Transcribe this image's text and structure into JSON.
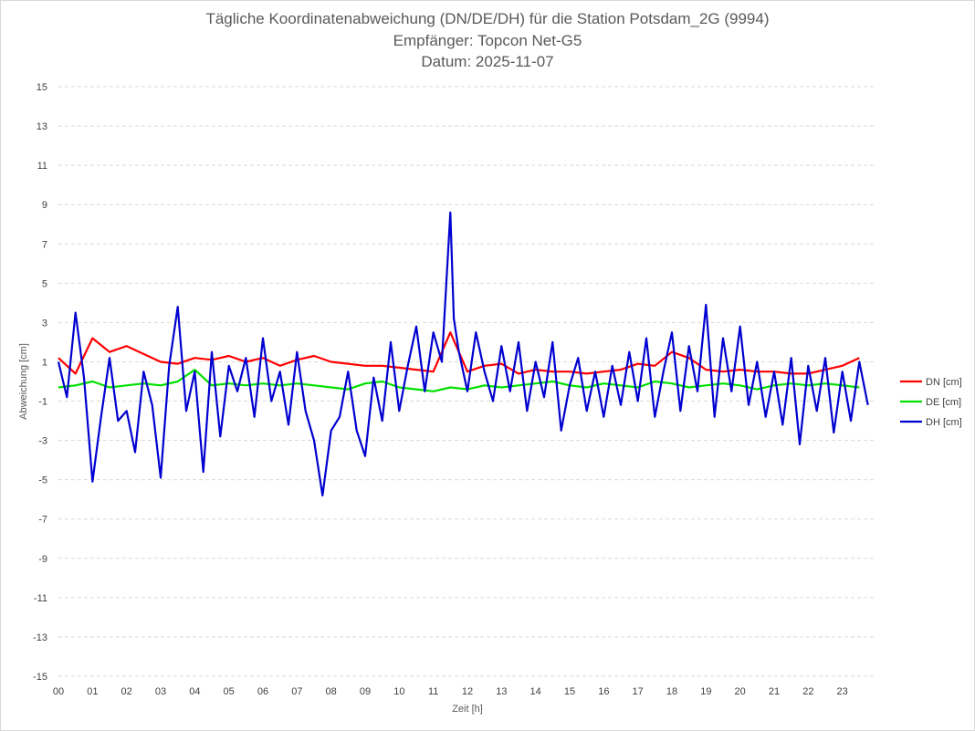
{
  "chart_data": {
    "type": "line",
    "title": "Tägliche Koordinatenabweichung (DN/DE/DH) für die Station Potsdam_2G (9994)",
    "subtitle_receiver": "Empfänger: Topcon Net-G5",
    "subtitle_date": "Datum: 2025-11-07",
    "xlabel": "Zeit [h]",
    "ylabel": "Abweichung [cm]",
    "xlim": [
      0,
      24
    ],
    "ylim": [
      -15,
      15
    ],
    "yticks": [
      "15",
      "13",
      "11",
      "9",
      "7",
      "5",
      "3",
      "1",
      "-1",
      "-3",
      "-5",
      "-7",
      "-9",
      "-11",
      "-13",
      "-15"
    ],
    "xticks": [
      "00",
      "01",
      "02",
      "03",
      "04",
      "05",
      "06",
      "07",
      "08",
      "09",
      "10",
      "11",
      "12",
      "13",
      "14",
      "15",
      "16",
      "17",
      "18",
      "19",
      "20",
      "21",
      "22",
      "23"
    ],
    "grid": "horizontal dashed",
    "legend_position": "right",
    "series": [
      {
        "name": "DN [cm]",
        "color": "#ff0000",
        "x": [
          0,
          0.5,
          1,
          1.5,
          2,
          2.5,
          3,
          3.5,
          4,
          4.5,
          5,
          5.5,
          6,
          6.5,
          7,
          7.5,
          8,
          8.5,
          9,
          9.5,
          10,
          10.5,
          11,
          11.5,
          12,
          12.5,
          13,
          13.5,
          14,
          14.5,
          15,
          15.5,
          16,
          16.5,
          17,
          17.5,
          18,
          18.5,
          19,
          19.5,
          20,
          20.5,
          21,
          21.5,
          22,
          22.5,
          23,
          23.5
        ],
        "values": [
          1.2,
          0.4,
          2.2,
          1.5,
          1.8,
          1.4,
          1.0,
          0.9,
          1.2,
          1.1,
          1.3,
          1.0,
          1.2,
          0.8,
          1.1,
          1.3,
          1.0,
          0.9,
          0.8,
          0.8,
          0.7,
          0.6,
          0.5,
          2.5,
          0.5,
          0.8,
          0.9,
          0.4,
          0.6,
          0.5,
          0.5,
          0.4,
          0.5,
          0.6,
          0.9,
          0.8,
          1.5,
          1.2,
          0.6,
          0.5,
          0.6,
          0.5,
          0.5,
          0.4,
          0.4,
          0.6,
          0.8,
          1.2
        ]
      },
      {
        "name": "DE [cm]",
        "color": "#00e000",
        "x": [
          0,
          0.5,
          1,
          1.5,
          2,
          2.5,
          3,
          3.5,
          4,
          4.5,
          5,
          5.5,
          6,
          6.5,
          7,
          7.5,
          8,
          8.5,
          9,
          9.5,
          10,
          10.5,
          11,
          11.5,
          12,
          12.5,
          13,
          13.5,
          14,
          14.5,
          15,
          15.5,
          16,
          16.5,
          17,
          17.5,
          18,
          18.5,
          19,
          19.5,
          20,
          20.5,
          21,
          21.5,
          22,
          22.5,
          23,
          23.5
        ],
        "values": [
          -0.3,
          -0.2,
          0.0,
          -0.3,
          -0.2,
          -0.1,
          -0.2,
          0.0,
          0.6,
          -0.2,
          -0.1,
          -0.2,
          -0.1,
          -0.2,
          -0.1,
          -0.2,
          -0.3,
          -0.4,
          -0.1,
          0.0,
          -0.3,
          -0.4,
          -0.5,
          -0.3,
          -0.4,
          -0.2,
          -0.3,
          -0.2,
          -0.1,
          0.0,
          -0.2,
          -0.3,
          -0.1,
          -0.2,
          -0.3,
          0.0,
          -0.1,
          -0.3,
          -0.2,
          -0.1,
          -0.2,
          -0.4,
          -0.2,
          -0.1,
          -0.2,
          -0.1,
          -0.2,
          -0.3
        ]
      },
      {
        "name": "DH [cm]",
        "color": "#0000d0",
        "x": [
          0,
          0.25,
          0.5,
          0.75,
          1,
          1.25,
          1.5,
          1.75,
          2,
          2.25,
          2.5,
          2.75,
          3,
          3.25,
          3.5,
          3.75,
          4,
          4.25,
          4.5,
          4.75,
          5,
          5.25,
          5.5,
          5.75,
          6,
          6.25,
          6.5,
          6.75,
          7,
          7.25,
          7.5,
          7.75,
          8,
          8.25,
          8.5,
          8.75,
          9,
          9.25,
          9.5,
          9.75,
          10,
          10.25,
          10.5,
          10.75,
          11,
          11.25,
          11.5,
          11.6,
          11.75,
          12,
          12.25,
          12.5,
          12.75,
          13,
          13.25,
          13.5,
          13.75,
          14,
          14.25,
          14.5,
          14.75,
          15,
          15.25,
          15.5,
          15.75,
          16,
          16.25,
          16.5,
          16.75,
          17,
          17.25,
          17.5,
          17.75,
          18,
          18.25,
          18.5,
          18.75,
          19,
          19.25,
          19.5,
          19.75,
          20,
          20.25,
          20.5,
          20.75,
          21,
          21.25,
          21.5,
          21.75,
          22,
          22.25,
          22.5,
          22.75,
          23,
          23.25,
          23.5,
          23.75
        ],
        "values": [
          1.0,
          -0.8,
          3.5,
          0.2,
          -5.1,
          -1.8,
          1.2,
          -2.0,
          -1.5,
          -3.6,
          0.5,
          -1.2,
          -4.9,
          0.8,
          3.8,
          -1.5,
          0.5,
          -4.6,
          1.5,
          -2.8,
          0.8,
          -0.5,
          1.2,
          -1.8,
          2.2,
          -1.0,
          0.5,
          -2.2,
          1.5,
          -1.5,
          -3.0,
          -5.8,
          -2.5,
          -1.8,
          0.5,
          -2.5,
          -3.8,
          0.2,
          -2.0,
          2.0,
          -1.5,
          0.8,
          2.8,
          -0.5,
          2.5,
          1.0,
          8.6,
          3.2,
          1.5,
          -0.5,
          2.5,
          0.5,
          -1.0,
          1.8,
          -0.5,
          2.0,
          -1.5,
          1.0,
          -0.8,
          2.0,
          -2.5,
          -0.2,
          1.2,
          -1.5,
          0.5,
          -1.8,
          0.8,
          -1.2,
          1.5,
          -1.0,
          2.2,
          -1.8,
          0.5,
          2.5,
          -1.5,
          1.8,
          -0.5,
          3.9,
          -1.8,
          2.2,
          -0.5,
          2.8,
          -1.2,
          1.0,
          -1.8,
          0.5,
          -2.2,
          1.2,
          -3.2,
          0.8,
          -1.5,
          1.2,
          -2.6,
          0.5,
          -2.0,
          1.0,
          -1.2
        ]
      }
    ]
  }
}
